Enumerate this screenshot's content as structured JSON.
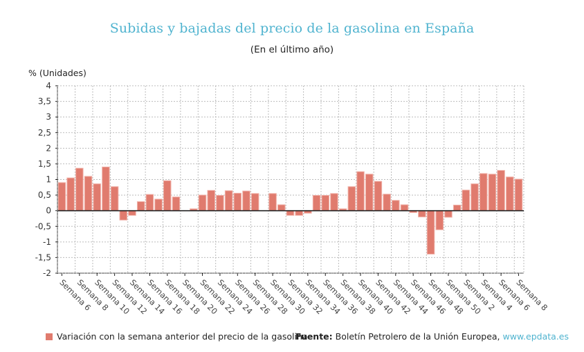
{
  "header": {
    "title": "Subidas y bajadas del precio de la gasolina en España",
    "subtitle": "(En el último año)"
  },
  "footer": {
    "legend_label": "Variación con la semana anterior del precio de la gasolina",
    "source_label": "Fuente:",
    "source_text": "Boletín Petrolero de la Unión Europea,",
    "source_link": "www.epdata.es"
  },
  "colors": {
    "bar": "#e07b6e",
    "bar_border": "#f1b2a9",
    "title": "#4fb3cf",
    "link": "#4fb3cf",
    "zero_line": "#222222",
    "grid": "#bbbbbb"
  },
  "chart_data": {
    "type": "bar",
    "title": "Subidas y bajadas del precio de la gasolina en España",
    "subtitle": "(En el último año)",
    "xlabel": "",
    "ylabel": "% (Unidades)",
    "ylim": [
      -2,
      4
    ],
    "yticks": [
      4,
      3.5,
      3,
      2.5,
      2,
      1.5,
      1,
      0.5,
      0,
      -0.5,
      -1,
      -1.5,
      -2
    ],
    "ytick_labels": [
      "4",
      "3,5",
      "3",
      "2,5",
      "2",
      "1,5",
      "1",
      "0,5",
      "0",
      "-0,5",
      "-1",
      "-1,5",
      "-2"
    ],
    "grid": true,
    "legend": "bottom-left",
    "xtick_labels": [
      "Semana 6",
      "Semana 8",
      "Semana 10",
      "Semana 12",
      "Semana 14",
      "Semana 16",
      "Semana 18",
      "Semana 20",
      "Semana 22",
      "Semana 24",
      "Semana 26",
      "Semana 28",
      "Semana 30",
      "Semana 32",
      "Semana 34",
      "Semana 36",
      "Semana 38",
      "Semana 40",
      "Semana 42",
      "Semana 44",
      "Semana 46",
      "Semana 48",
      "Semana 50",
      "Semana 2",
      "Semana 4",
      "Semana 6",
      "Semana 8"
    ],
    "xtick_every": 2,
    "series": [
      {
        "name": "Variación con la semana anterior del precio de la gasolina",
        "values": [
          0.9,
          1.05,
          1.36,
          1.1,
          0.86,
          1.4,
          0.77,
          -0.3,
          -0.15,
          0.29,
          0.52,
          0.37,
          0.96,
          0.44,
          0.0,
          0.06,
          0.5,
          0.65,
          0.49,
          0.64,
          0.56,
          0.63,
          0.55,
          0.0,
          0.55,
          0.19,
          -0.15,
          -0.15,
          -0.08,
          0.49,
          0.49,
          0.55,
          0.06,
          0.77,
          1.25,
          1.17,
          0.94,
          0.53,
          0.33,
          0.19,
          -0.06,
          -0.2,
          -1.39,
          -0.61,
          -0.21,
          0.18,
          0.66,
          0.86,
          1.19,
          1.17,
          1.29,
          1.08,
          1.01
        ]
      }
    ]
  }
}
